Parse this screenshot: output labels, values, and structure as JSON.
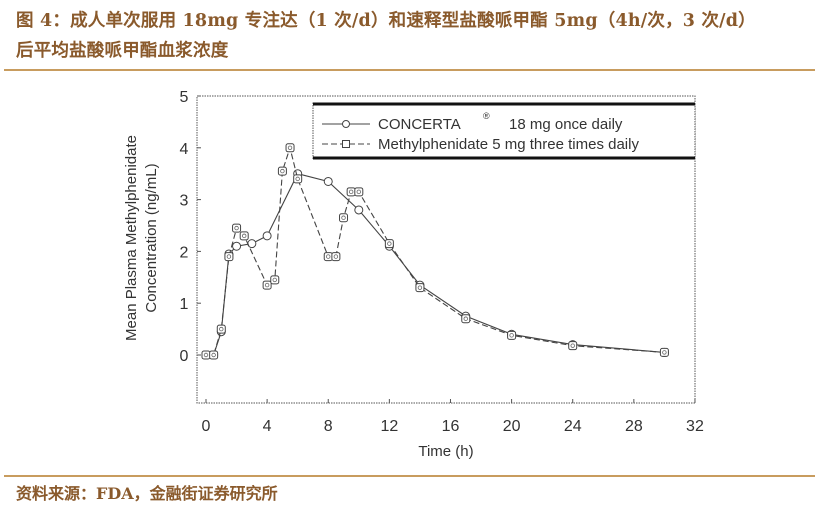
{
  "header": {
    "title_line1": "图 4：成人单次服用 18mg 专注达（1 次/d）和速释型盐酸哌甲酯 5mg（4h/次，3 次/d）",
    "title_line2": "后平均盐酸哌甲酯血浆浓度"
  },
  "footer": {
    "source": "资料来源：FDA，金融街证券研究所"
  },
  "colors": {
    "title": "#8a5a2c",
    "separator": "#c89c5e",
    "series": "#333333"
  },
  "chart_data": {
    "type": "line",
    "title": "",
    "xlabel": "Time (h)",
    "ylabel": "Mean Plasma Methylphenidate Concentration (ng/mL)",
    "ylabel_line1": "Mean Plasma Methylphenidate",
    "ylabel_line2": "Concentration (ng/mL)",
    "xlim": [
      -0.6,
      32
    ],
    "ylim": [
      -0.9,
      5
    ],
    "xticks": [
      0,
      4,
      8,
      12,
      16,
      20,
      24,
      28,
      32
    ],
    "yticks": [
      0,
      1,
      2,
      3,
      4,
      5
    ],
    "grid": false,
    "legend_position": "upper right",
    "series": [
      {
        "name": "CONCERTA ® 18 mg once daily",
        "legend_label": "CONCERTA",
        "legend_suffix": "18 mg  once daily",
        "marker": "circle",
        "linestyle": "solid",
        "x": [
          0,
          0.5,
          1,
          1.5,
          2,
          3,
          4,
          6,
          8,
          10,
          12,
          14,
          17,
          20,
          24,
          30
        ],
        "y": [
          0.0,
          0.0,
          0.45,
          1.95,
          2.1,
          2.15,
          2.3,
          3.5,
          3.35,
          2.8,
          2.1,
          1.35,
          0.75,
          0.4,
          0.2,
          0.05
        ]
      },
      {
        "name": "Methylphenidate 5 mg three times daily",
        "legend_label": "Methylphenidate 5 mg  three times daily",
        "marker": "square-circle",
        "linestyle": "dashed",
        "x": [
          0,
          0.5,
          1,
          1.5,
          2,
          2.5,
          4,
          4.5,
          5,
          5.5,
          6,
          8,
          8.5,
          9,
          9.5,
          10,
          12,
          14,
          17,
          20,
          24,
          30
        ],
        "y": [
          0.0,
          0.0,
          0.5,
          1.9,
          2.45,
          2.3,
          1.35,
          1.45,
          3.55,
          4.0,
          3.4,
          1.9,
          1.9,
          2.65,
          3.15,
          3.15,
          2.15,
          1.3,
          0.7,
          0.38,
          0.18,
          0.05
        ]
      }
    ]
  }
}
